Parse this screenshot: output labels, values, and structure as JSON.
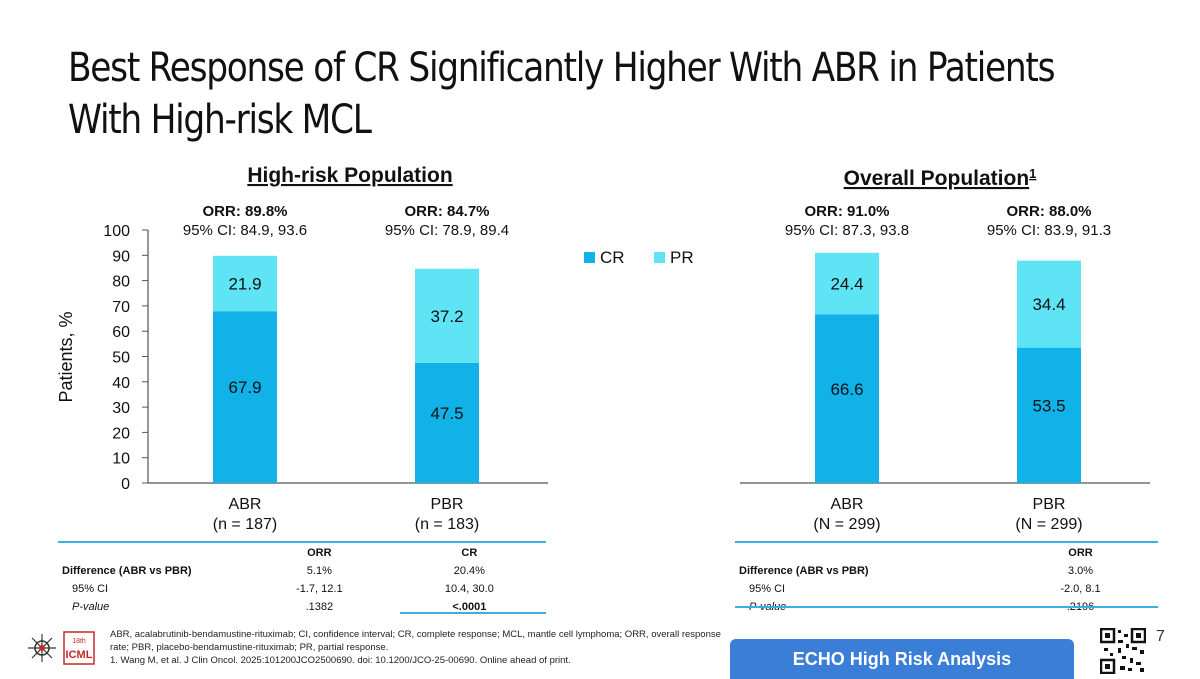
{
  "title_lines": [
    "Best Response of CR Significantly Higher With ABR in Patients",
    "With High-risk MCL"
  ],
  "colors": {
    "cr": "#10b2e8",
    "pr": "#5ee4f5",
    "axis": "#555555",
    "rule": "#3ab0e2",
    "banner": "#3a7ed8"
  },
  "chart_data": {
    "type": "bar",
    "stacked": true,
    "ylabel": "Patients, %",
    "ylim": [
      0,
      100
    ],
    "yticks": [
      "0",
      "10",
      "20",
      "30",
      "40",
      "50",
      "60",
      "70",
      "80",
      "90",
      "100"
    ],
    "legend": [
      "CR",
      "PR"
    ],
    "panels": [
      {
        "title": "High-risk Population",
        "groups": [
          {
            "label": "ABR",
            "n": "(n = 187)",
            "orr": "ORR: 89.8%",
            "ci": "95% CI: 84.9, 93.6",
            "cr": 67.9,
            "pr": 21.9,
            "cr_label": "67.9",
            "pr_label": "21.9"
          },
          {
            "label": "PBR",
            "n": "(n = 183)",
            "orr": "ORR: 84.7%",
            "ci": "95% CI: 78.9, 89.4",
            "cr": 47.5,
            "pr": 37.2,
            "cr_label": "47.5",
            "pr_label": "37.2"
          }
        ]
      },
      {
        "title": "Overall Population",
        "title_sup": "1",
        "groups": [
          {
            "label": "ABR",
            "n": "(N = 299)",
            "orr": "ORR: 91.0%",
            "ci": "95% CI: 87.3, 93.8",
            "cr": 66.6,
            "pr": 24.4,
            "cr_label": "66.6",
            "pr_label": "24.4"
          },
          {
            "label": "PBR",
            "n": "(N = 299)",
            "orr": "ORR: 88.0%",
            "ci": "95% CI: 83.9, 91.3",
            "cr": 53.5,
            "pr": 34.4,
            "cr_label": "53.5",
            "pr_label": "34.4"
          }
        ]
      }
    ]
  },
  "left_table": {
    "head": [
      "ORR",
      "CR"
    ],
    "rows": [
      {
        "label": "Difference (ABR vs PBR)",
        "orr": "5.1%",
        "cr": "20.4%"
      },
      {
        "label": "95% CI",
        "orr": "-1.7, 12.1",
        "cr": "10.4, 30.0"
      },
      {
        "label": "P-value",
        "orr": ".1382",
        "cr": "<.0001"
      }
    ]
  },
  "right_table": {
    "head": [
      "ORR"
    ],
    "rows": [
      {
        "label": "Difference (ABR vs PBR)",
        "orr": "3.0%"
      },
      {
        "label": "95% CI",
        "orr": "-2.0, 8.1"
      },
      {
        "label": "P-value",
        "orr": ".2196"
      }
    ]
  },
  "footnote": {
    "line1": "ABR, acalabrutinib-bendamustine-rituximab; CI, confidence interval; CR, complete response; MCL, mantle cell lymphoma; ORR, overall response",
    "line2": "rate; PBR, placebo-bendamustine-rituximab; PR, partial response.",
    "line3": "1. Wang M, et al. J Clin Oncol. 2025:101200JCO2500690. doi: 10.1200/JCO-25-00690. Online ahead of print."
  },
  "logo": {
    "line1": "18th",
    "line2": "ICML"
  },
  "banner": "ECHO High Risk Analysis",
  "page_number": "7"
}
